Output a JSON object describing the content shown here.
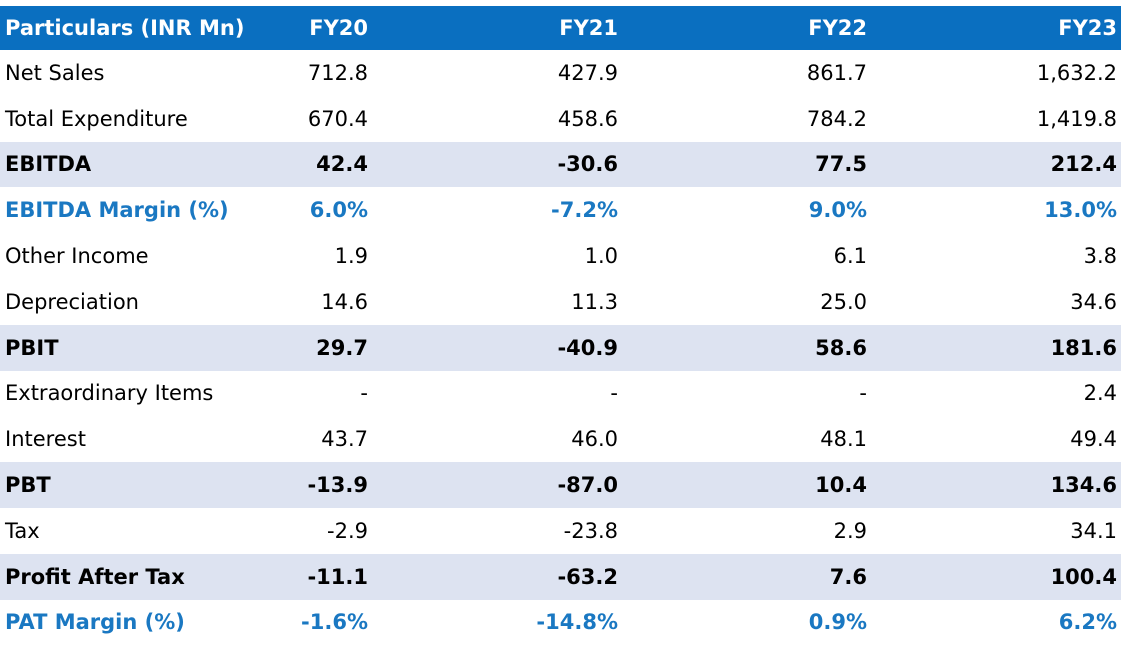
{
  "table": {
    "headers": [
      "Particulars (INR Mn)",
      "FY20",
      "FY21",
      "FY22",
      "FY23"
    ],
    "rows": [
      {
        "style": "normal",
        "cells": [
          "Net Sales",
          "712.8",
          "427.9",
          "861.7",
          "1,632.2"
        ]
      },
      {
        "style": "normal",
        "cells": [
          "Total Expenditure",
          "670.4",
          "458.6",
          "784.2",
          "1,419.8"
        ]
      },
      {
        "style": "band",
        "cells": [
          "EBITDA",
          "42.4",
          "-30.6",
          "77.5",
          "212.4"
        ]
      },
      {
        "style": "accent",
        "cells": [
          "EBITDA Margin (%)",
          "6.0%",
          "-7.2%",
          "9.0%",
          "13.0%"
        ]
      },
      {
        "style": "normal",
        "cells": [
          "Other Income",
          "1.9",
          "1.0",
          "6.1",
          "3.8"
        ]
      },
      {
        "style": "normal",
        "cells": [
          "Depreciation",
          "14.6",
          "11.3",
          "25.0",
          "34.6"
        ]
      },
      {
        "style": "band",
        "cells": [
          "PBIT",
          "29.7",
          "-40.9",
          "58.6",
          "181.6"
        ]
      },
      {
        "style": "normal",
        "cells": [
          "Extraordinary Items",
          "-",
          "-",
          "-",
          "2.4"
        ]
      },
      {
        "style": "normal",
        "cells": [
          "Interest",
          "43.7",
          "46.0",
          "48.1",
          "49.4"
        ]
      },
      {
        "style": "band",
        "cells": [
          "PBT",
          "-13.9",
          "-87.0",
          "10.4",
          "134.6"
        ]
      },
      {
        "style": "normal",
        "cells": [
          "Tax",
          "-2.9",
          "-23.8",
          "2.9",
          "34.1"
        ]
      },
      {
        "style": "band",
        "cells": [
          "Profit After Tax",
          "-11.1",
          "-63.2",
          "7.6",
          "100.4"
        ]
      },
      {
        "style": "accent",
        "cells": [
          "PAT Margin (%)",
          "-1.6%",
          "-14.8%",
          "0.9%",
          "6.2%"
        ]
      }
    ],
    "colors": {
      "header_bg": "#0a6fc0",
      "band_bg": "#dde3f1",
      "accent_text": "#1a78c2"
    }
  }
}
